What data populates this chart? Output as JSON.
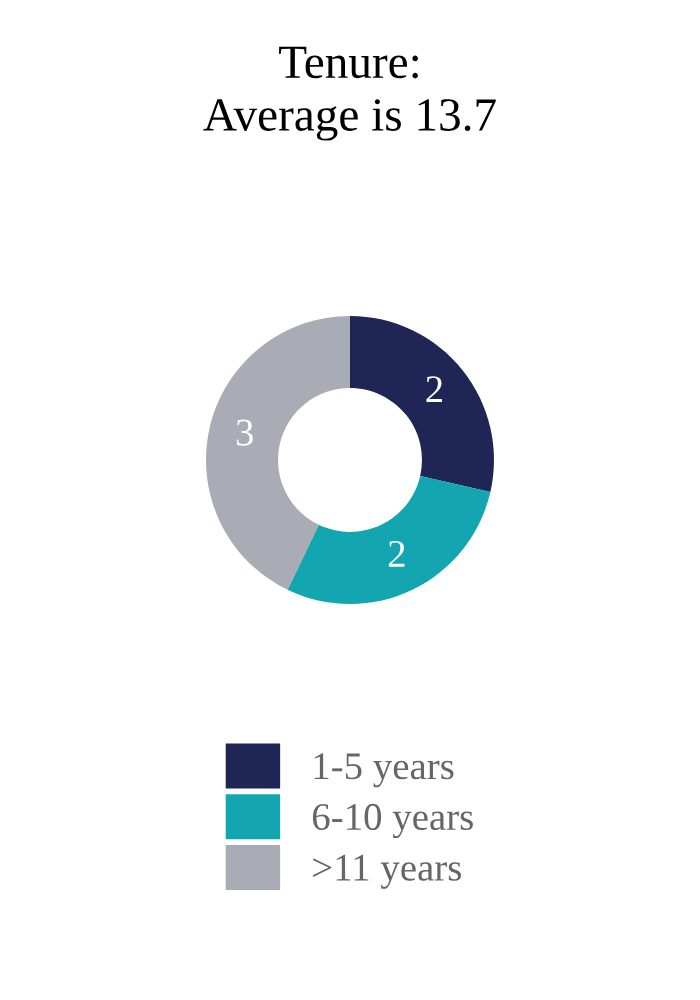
{
  "chart_data": {
    "type": "donut",
    "title": "Tenure:\nAverage is 13.7",
    "categories": [
      "1-5 years",
      "6-10 years",
      ">11 years"
    ],
    "values": [
      2,
      2,
      3
    ],
    "colors": [
      "#1f2555",
      "#13a6b0",
      "#a9abb5"
    ],
    "data_labels": true,
    "legend": "bottom"
  }
}
